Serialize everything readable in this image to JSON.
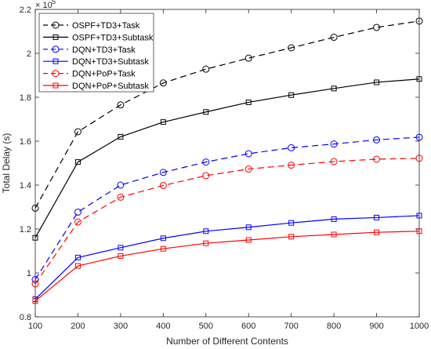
{
  "chart_data": {
    "type": "line",
    "xlabel": "Number of Different Contents",
    "ylabel": "Total Delay (s)",
    "y_exponent_base": "× 10",
    "y_exponent_power": "5",
    "xlim": [
      100,
      1000
    ],
    "ylim": [
      0.8,
      2.2
    ],
    "x_ticks": [
      100,
      200,
      300,
      400,
      500,
      600,
      700,
      800,
      900,
      1000
    ],
    "y_ticks": [
      0.8,
      1,
      1.2,
      1.4,
      1.6,
      1.8,
      2,
      2.2
    ],
    "y_tick_labels": [
      "0.8",
      "1",
      "1.2",
      "1.4",
      "1.6",
      "1.8",
      "2",
      "2.2"
    ],
    "grid": false,
    "legend_position": "top-left",
    "x": [
      100,
      200,
      300,
      400,
      500,
      600,
      700,
      800,
      900,
      1000
    ],
    "series": [
      {
        "name": "OSPF+TD3+Task",
        "color": "#000000",
        "dash": "dashed",
        "marker": "circle",
        "values": [
          1.295,
          1.643,
          1.765,
          1.865,
          1.928,
          1.978,
          2.025,
          2.073,
          2.118,
          2.147
        ]
      },
      {
        "name": "OSPF+TD3+Subtask",
        "color": "#000000",
        "dash": "solid",
        "marker": "square",
        "values": [
          1.16,
          1.505,
          1.62,
          1.687,
          1.733,
          1.777,
          1.81,
          1.84,
          1.868,
          1.883
        ]
      },
      {
        "name": "DQN+TD3+Task",
        "color": "#0000ff",
        "dash": "dashed",
        "marker": "circle",
        "values": [
          0.97,
          1.277,
          1.4,
          1.458,
          1.505,
          1.543,
          1.57,
          1.587,
          1.606,
          1.618
        ]
      },
      {
        "name": "DQN+TD3+Subtask",
        "color": "#0000ff",
        "dash": "solid",
        "marker": "square",
        "values": [
          0.88,
          1.07,
          1.115,
          1.158,
          1.19,
          1.208,
          1.228,
          1.245,
          1.252,
          1.261
        ]
      },
      {
        "name": "DQN+PoP+Task",
        "color": "#ff0000",
        "dash": "dashed",
        "marker": "circle",
        "values": [
          0.95,
          1.232,
          1.345,
          1.398,
          1.443,
          1.473,
          1.491,
          1.507,
          1.518,
          1.522
        ]
      },
      {
        "name": "DQN+PoP+Subtask",
        "color": "#ff0000",
        "dash": "solid",
        "marker": "square",
        "values": [
          0.872,
          1.032,
          1.077,
          1.11,
          1.135,
          1.15,
          1.165,
          1.175,
          1.185,
          1.19
        ]
      }
    ]
  }
}
